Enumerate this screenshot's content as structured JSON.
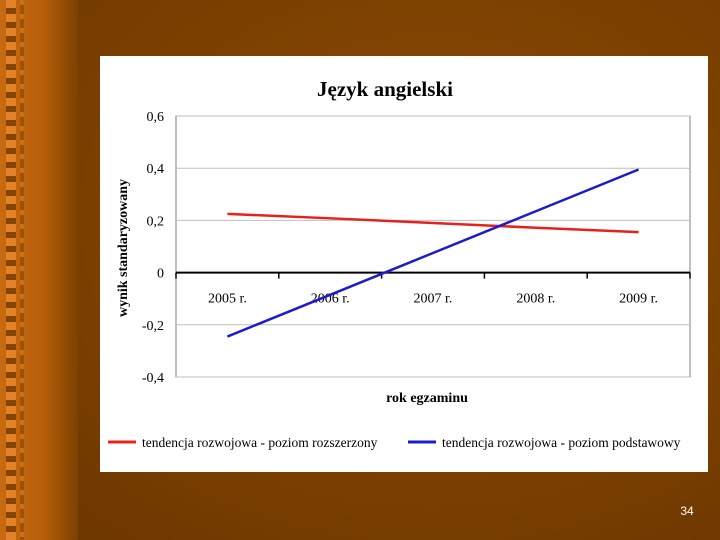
{
  "slide": {
    "page_number": "34"
  },
  "chart_data": {
    "type": "line",
    "title": "Język angielski",
    "xlabel": "rok egzaminu",
    "ylabel": "wynik standaryzowany",
    "categories": [
      "2005 r.",
      "2006 r.",
      "2007 r.",
      "2008 r.",
      "2009 r."
    ],
    "ylim": [
      -0.4,
      0.6
    ],
    "yticks": [
      -0.4,
      -0.2,
      0,
      0.2,
      0.4,
      0.6
    ],
    "ytick_labels": [
      "-0,4",
      "-0,2",
      "0",
      "0,2",
      "0,4",
      "0,6"
    ],
    "grid": true,
    "legend_position": "bottom",
    "series": [
      {
        "name": "tendencja rozwojowa - poziom rozszerzony",
        "color": "#e8201c",
        "values": [
          0.225,
          0.208,
          0.19,
          0.172,
          0.155
        ]
      },
      {
        "name": "tendencja rozwojowa - poziom podstawowy",
        "color": "#1c1cc8",
        "values": [
          -0.245,
          -0.085,
          0.075,
          0.235,
          0.395
        ]
      }
    ]
  }
}
